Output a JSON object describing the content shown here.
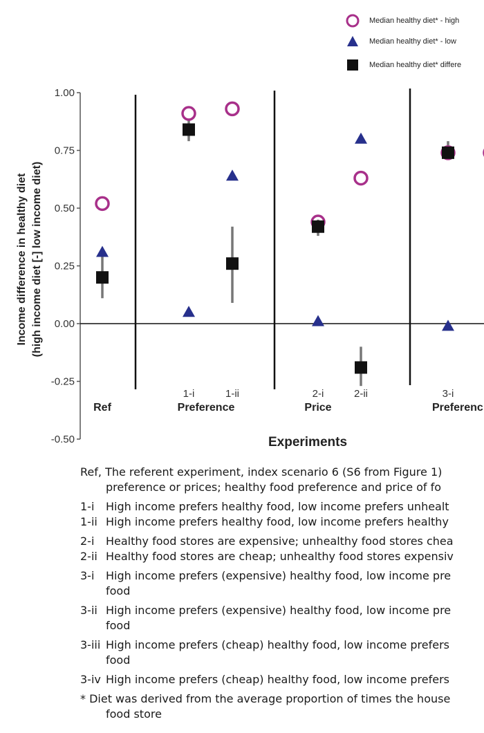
{
  "legend": [
    {
      "label": "Median healthy diet* - high",
      "marker": "circle-icon",
      "color": "#a8308a"
    },
    {
      "label": "Median healthy diet* - low",
      "marker": "triangle-icon",
      "color": "#27308c"
    },
    {
      "label": "Median healthy diet* differe",
      "marker": "square-icon",
      "color": "#111111"
    }
  ],
  "chart_data": {
    "type": "scatter",
    "ylabel_line1": "Income difference in healthy diet",
    "ylabel_line2": "(high income diet [-] low income diet)",
    "xlabel": "Experiments",
    "ylim": [
      -0.5,
      1.0
    ],
    "yticks": [
      "1.00",
      "0.75",
      "0.50",
      "0.25",
      "0.00",
      "-0.25",
      "-0.50"
    ],
    "ytick_values": [
      1.0,
      0.75,
      0.5,
      0.25,
      0.0,
      -0.25,
      -0.5
    ],
    "groups": [
      "Ref",
      "Preference",
      "Price",
      "Preferenc"
    ],
    "categories": [
      "",
      "1-i",
      "1-ii",
      "2-i",
      "2-ii",
      "3-i"
    ],
    "series": [
      {
        "name": "Median healthy diet* - high",
        "marker": "circle",
        "color": "#a8308a",
        "values": [
          0.52,
          0.91,
          0.93,
          0.44,
          0.63,
          0.74
        ]
      },
      {
        "name": "Median healthy diet* - low",
        "marker": "triangle",
        "color": "#27308c",
        "values": [
          0.31,
          0.05,
          0.64,
          0.01,
          0.8,
          -0.01
        ]
      },
      {
        "name": "Median healthy diet* differe",
        "marker": "square",
        "color": "#111111",
        "values": [
          0.2,
          0.84,
          0.26,
          0.42,
          -0.19,
          0.74
        ],
        "error_low": [
          0.11,
          0.79,
          0.09,
          0.38,
          -0.27,
          0.72
        ],
        "error_high": [
          0.31,
          0.88,
          0.42,
          0.45,
          -0.1,
          0.79
        ]
      }
    ],
    "partial_circle_next": 0.74,
    "partial_category_next": "3"
  },
  "caption": {
    "ref_code": "Ref,",
    "ref_line1": "The referent experiment, index scenario 6 (S6 from Figure 1)",
    "ref_line2": "preference or prices; healthy food preference and price of fo",
    "items": [
      {
        "code": "1-i",
        "text": "High income prefers healthy food, low income prefers unhealt"
      },
      {
        "code": "1-ii",
        "text": "High income prefers healthy food, low income prefers healthy"
      },
      {
        "code": "2-i",
        "text": "Healthy food stores are expensive; unhealthy food stores chea"
      },
      {
        "code": "2-ii",
        "text": "Healthy food stores are cheap; unhealthy food stores expensiv"
      },
      {
        "code": "3-i",
        "text": "High income prefers (expensive) healthy food, low income pre",
        "cont": "food"
      },
      {
        "code": "3-ii",
        "text": "High income prefers (expensive) healthy food, low income pre",
        "cont": "food"
      },
      {
        "code": "3-iii",
        "text": "High income prefers (cheap) healthy food, low income prefers",
        "cont": "food"
      },
      {
        "code": "3-iv",
        "text": "High income prefers (cheap) healthy food, low income prefers"
      }
    ],
    "note_line1": "* Diet was derived from the average proportion of times the house",
    "note_line2": "food store"
  }
}
